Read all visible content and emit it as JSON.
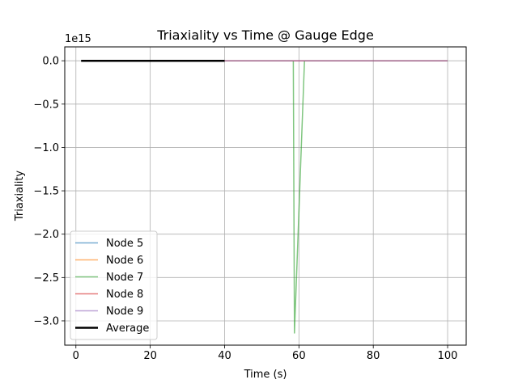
{
  "chart_data": {
    "type": "line",
    "title": "Triaxiality vs Time @ Gauge Edge",
    "xlabel": "Time (s)",
    "ylabel": "Triaxiality",
    "offset_label": "1e15",
    "xlim": [
      -3,
      105
    ],
    "ylim": [
      -3.28,
      0.16
    ],
    "x_ticks": [
      0,
      20,
      40,
      60,
      80,
      100
    ],
    "y_ticks": [
      0.0,
      -0.5,
      -1.0,
      -1.5,
      -2.0,
      -2.5,
      -3.0
    ],
    "x_tick_labels": [
      "0",
      "20",
      "40",
      "60",
      "80",
      "100"
    ],
    "y_tick_labels": [
      "0.0",
      "−0.5",
      "−1.0",
      "−1.5",
      "−2.0",
      "−2.5",
      "−3.0"
    ],
    "grid": true,
    "legend_position": "lower-left",
    "series": [
      {
        "name": "Node 5",
        "color": "#1f77b4",
        "alpha": 0.6,
        "width": 1.5,
        "x": [
          40,
          100
        ],
        "y": [
          0,
          0
        ]
      },
      {
        "name": "Node 6",
        "color": "#ff7f0e",
        "alpha": 0.6,
        "width": 1.5,
        "x": [
          40,
          100
        ],
        "y": [
          0,
          0
        ]
      },
      {
        "name": "Node 7",
        "color": "#2ca02c",
        "alpha": 0.6,
        "width": 1.5,
        "x": [
          40,
          58.5,
          58.8,
          61.5,
          62,
          100
        ],
        "y": [
          0,
          0,
          -3.14,
          0,
          0,
          0
        ]
      },
      {
        "name": "Node 8",
        "color": "#d62728",
        "alpha": 0.6,
        "width": 1.5,
        "x": [
          40,
          100
        ],
        "y": [
          0,
          0
        ]
      },
      {
        "name": "Node 9",
        "color": "#9467bd",
        "alpha": 0.6,
        "width": 1.5,
        "x": [
          40,
          100
        ],
        "y": [
          0,
          0
        ]
      },
      {
        "name": "Average",
        "color": "#000000",
        "alpha": 1.0,
        "width": 2.5,
        "x": [
          1.4,
          40
        ],
        "y": [
          0,
          0
        ]
      }
    ]
  }
}
